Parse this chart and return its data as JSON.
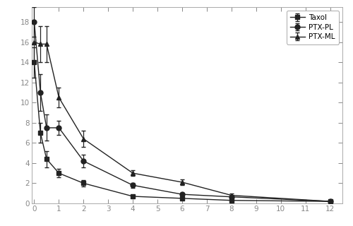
{
  "taxol": {
    "x": [
      0,
      0.25,
      0.5,
      1.0,
      2.0,
      4.0,
      6.0,
      8.0,
      12.0
    ],
    "y": [
      14.0,
      7.0,
      4.4,
      3.0,
      2.0,
      0.7,
      0.5,
      0.3,
      0.2
    ],
    "yerr": [
      1.5,
      1.0,
      0.8,
      0.4,
      0.3,
      0.15,
      0.12,
      0.08,
      0.05
    ],
    "label": "Taxol",
    "marker": "s",
    "color": "#222222"
  },
  "ptx_pl": {
    "x": [
      0,
      0.25,
      0.5,
      1.0,
      2.0,
      4.0,
      6.0,
      8.0,
      12.0
    ],
    "y": [
      18.0,
      11.0,
      7.5,
      7.5,
      4.2,
      1.8,
      0.9,
      0.65,
      0.2
    ],
    "yerr": [
      1.5,
      1.8,
      1.3,
      0.7,
      0.6,
      0.25,
      0.18,
      0.12,
      0.05
    ],
    "label": "PTX-PL",
    "marker": "o",
    "color": "#222222"
  },
  "ptx_ml": {
    "x": [
      0,
      0.25,
      0.5,
      1.0,
      2.0,
      4.0,
      6.0,
      8.0,
      12.0
    ],
    "y": [
      16.0,
      15.8,
      15.8,
      10.5,
      6.4,
      3.0,
      2.1,
      0.8,
      0.2
    ],
    "yerr": [
      2.0,
      1.8,
      1.8,
      1.0,
      0.8,
      0.3,
      0.3,
      0.15,
      0.05
    ],
    "label": "PTX-ML",
    "marker": "^",
    "color": "#222222"
  },
  "xlim": [
    -0.1,
    12.5
  ],
  "ylim": [
    0,
    19.5
  ],
  "xticks": [
    0,
    1,
    2,
    3,
    4,
    5,
    6,
    7,
    8,
    9,
    10,
    11,
    12
  ],
  "yticks": [
    0,
    2,
    4,
    6,
    8,
    10,
    12,
    14,
    16,
    18
  ],
  "legend_loc": "upper right",
  "linewidth": 1.0,
  "markersize": 5,
  "capsize": 2.5,
  "elinewidth": 0.9,
  "background_color": "#ffffff",
  "figsize": [
    5.0,
    3.2
  ],
  "dpi": 100
}
